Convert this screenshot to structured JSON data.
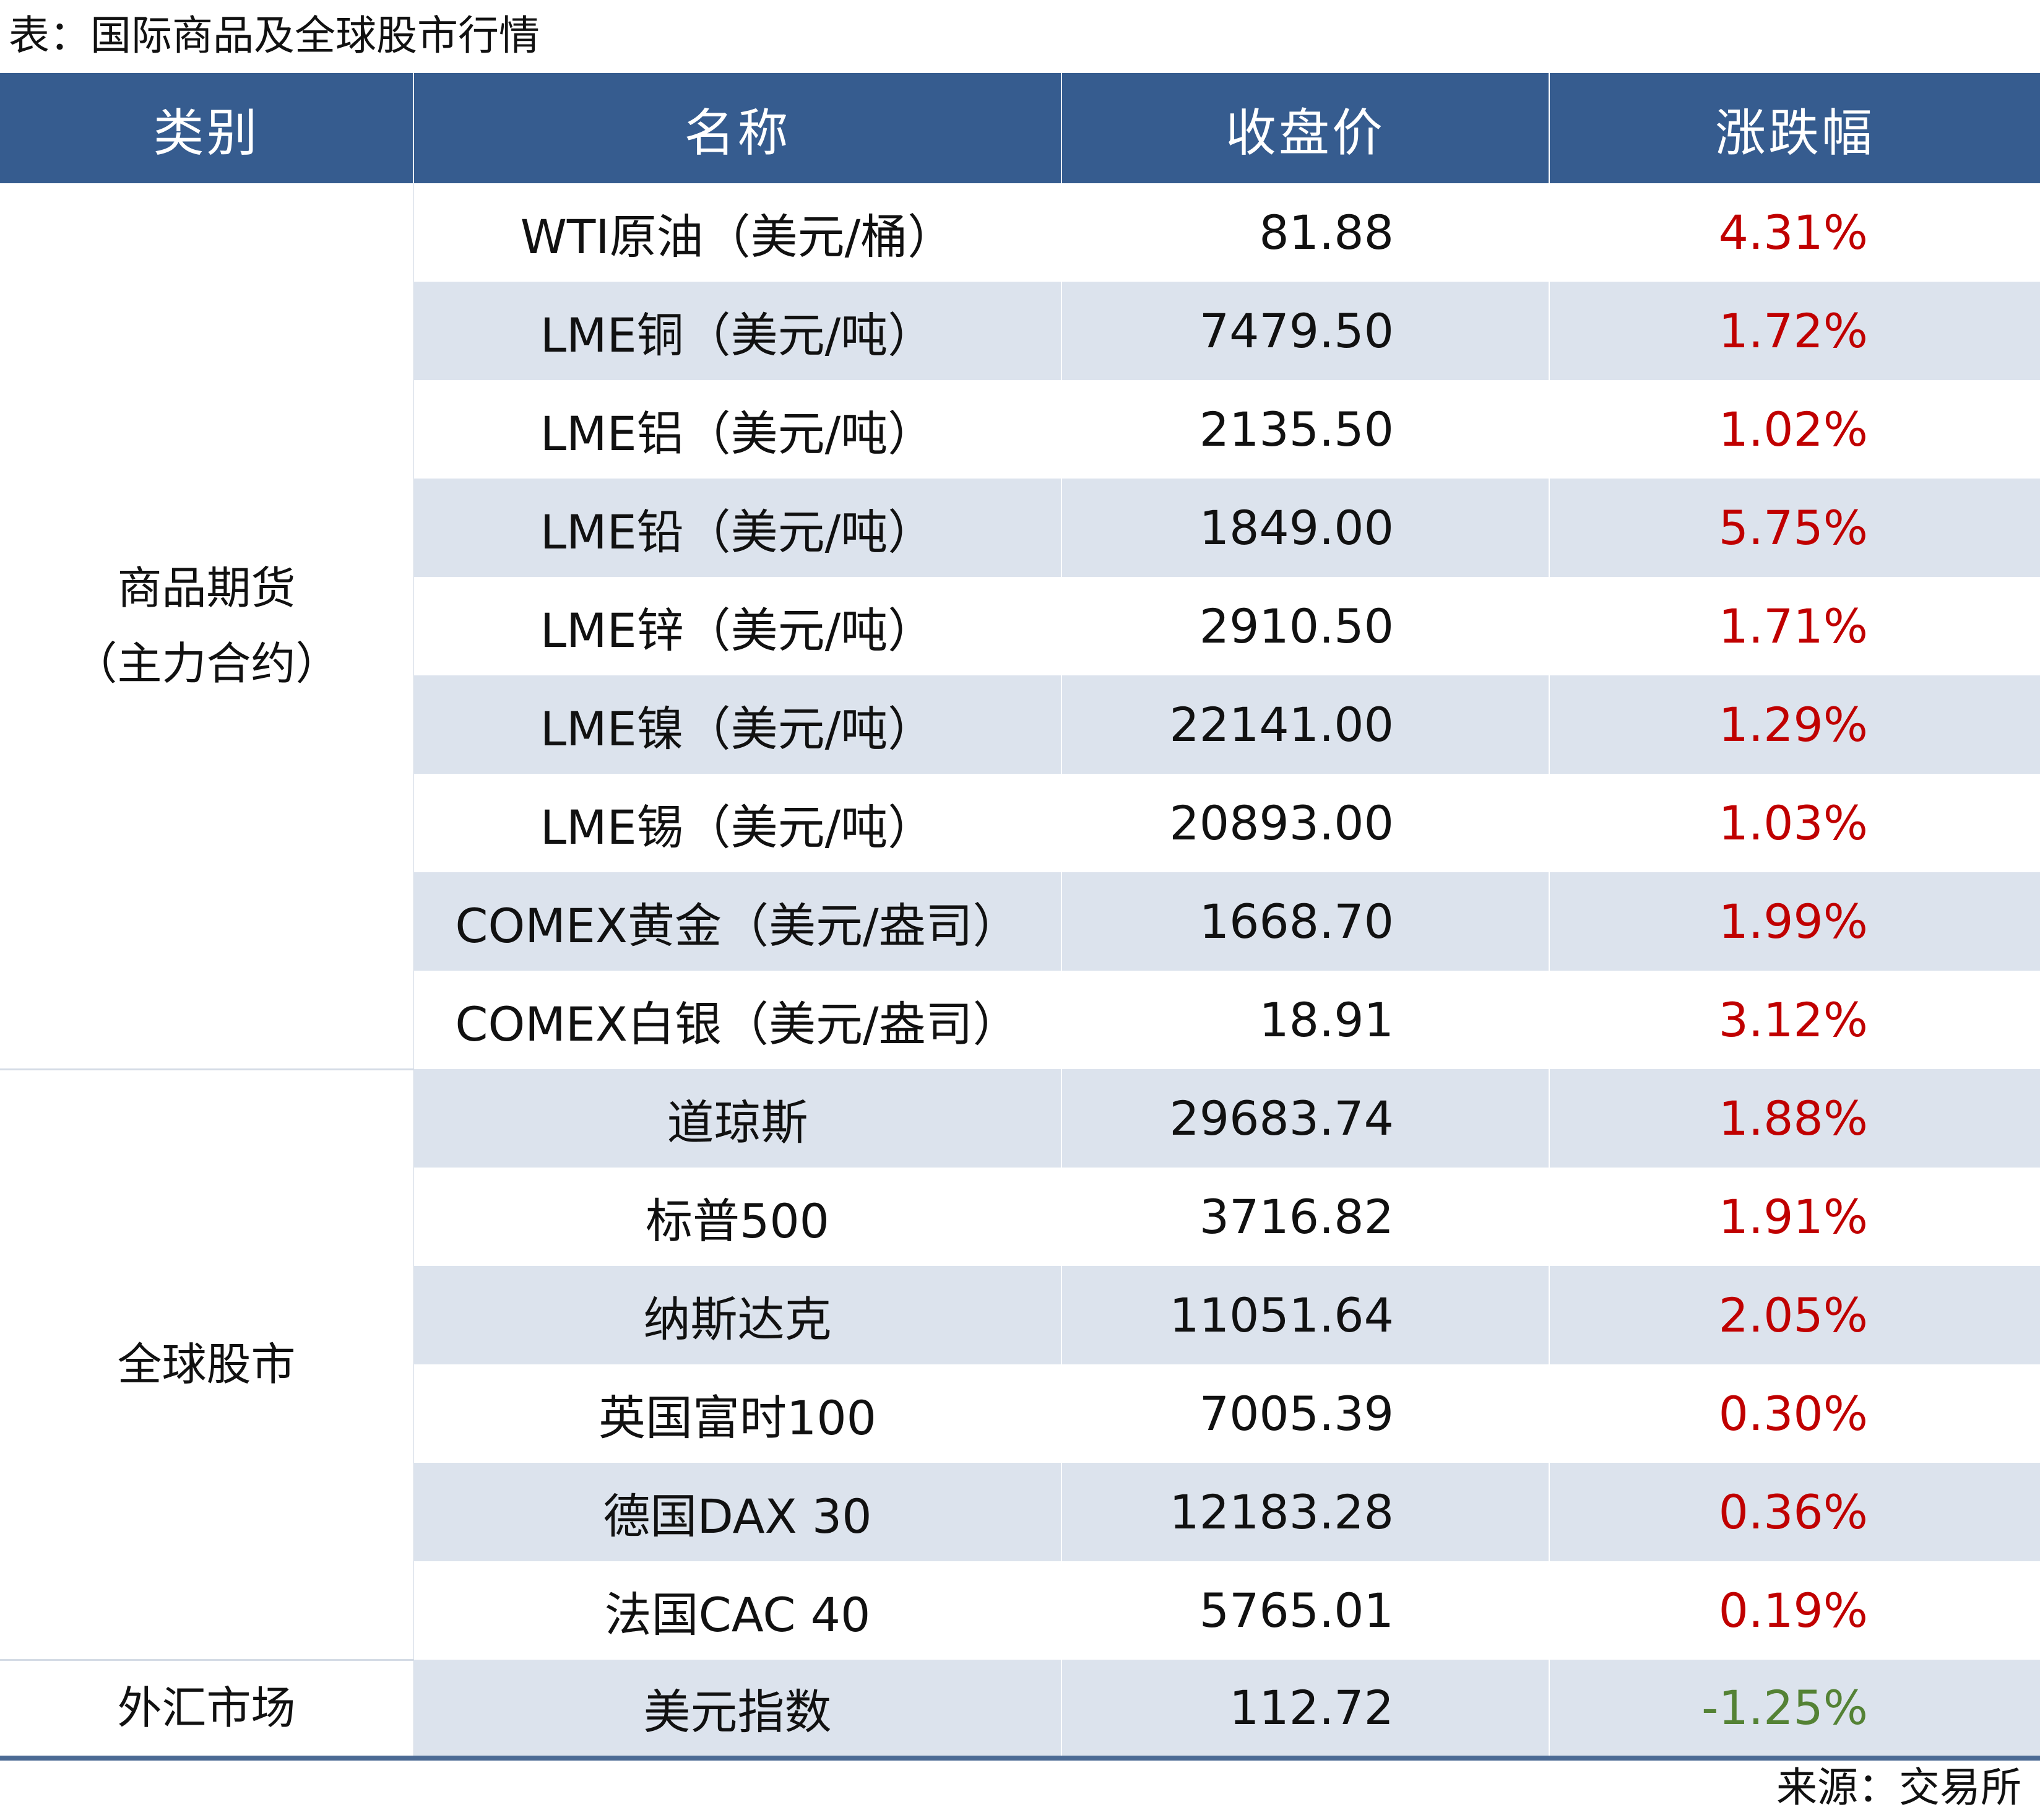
{
  "title": "表：国际商品及全球股市行情",
  "headers": [
    "类别",
    "名称",
    "收盘价",
    "涨跌幅"
  ],
  "groups": [
    {
      "category_line1": "商品期货",
      "category_line2": "（主力合约）",
      "rows": [
        {
          "name": "WTI原油（美元/桶）",
          "close": "81.88",
          "change": "4.31%",
          "direction": "up"
        },
        {
          "name": "LME铜（美元/吨）",
          "close": "7479.50",
          "change": "1.72%",
          "direction": "up"
        },
        {
          "name": "LME铝（美元/吨）",
          "close": "2135.50",
          "change": "1.02%",
          "direction": "up"
        },
        {
          "name": "LME铅（美元/吨）",
          "close": "1849.00",
          "change": "5.75%",
          "direction": "up"
        },
        {
          "name": "LME锌（美元/吨）",
          "close": "2910.50",
          "change": "1.71%",
          "direction": "up"
        },
        {
          "name": "LME镍（美元/吨）",
          "close": "22141.00",
          "change": "1.29%",
          "direction": "up"
        },
        {
          "name": "LME锡（美元/吨）",
          "close": "20893.00",
          "change": "1.03%",
          "direction": "up"
        },
        {
          "name": "COMEX黄金（美元/盎司）",
          "close": "1668.70",
          "change": "1.99%",
          "direction": "up"
        },
        {
          "name": "COMEX白银（美元/盎司）",
          "close": "18.91",
          "change": "3.12%",
          "direction": "up"
        }
      ]
    },
    {
      "category_line1": "全球股市",
      "category_line2": "",
      "rows": [
        {
          "name": "道琼斯",
          "close": "29683.74",
          "change": "1.88%",
          "direction": "up"
        },
        {
          "name": "标普500",
          "close": "3716.82",
          "change": "1.91%",
          "direction": "up"
        },
        {
          "name": "纳斯达克",
          "close": "11051.64",
          "change": "2.05%",
          "direction": "up"
        },
        {
          "name": "英国富时100",
          "close": "7005.39",
          "change": "0.30%",
          "direction": "up"
        },
        {
          "name": "德国DAX 30",
          "close": "12183.28",
          "change": "0.36%",
          "direction": "up"
        },
        {
          "name": "法国CAC 40",
          "close": "5765.01",
          "change": "0.19%",
          "direction": "up"
        }
      ]
    },
    {
      "category_line1": "外汇市场",
      "category_line2": "",
      "rows": [
        {
          "name": "美元指数",
          "close": "112.72",
          "change": "-1.25%",
          "direction": "down"
        }
      ]
    }
  ],
  "source": "来源：交易所",
  "colors": {
    "header_bg": "#365c8f",
    "row_shade": "#dce3ed",
    "positive": "#c00000",
    "negative": "#548235"
  }
}
